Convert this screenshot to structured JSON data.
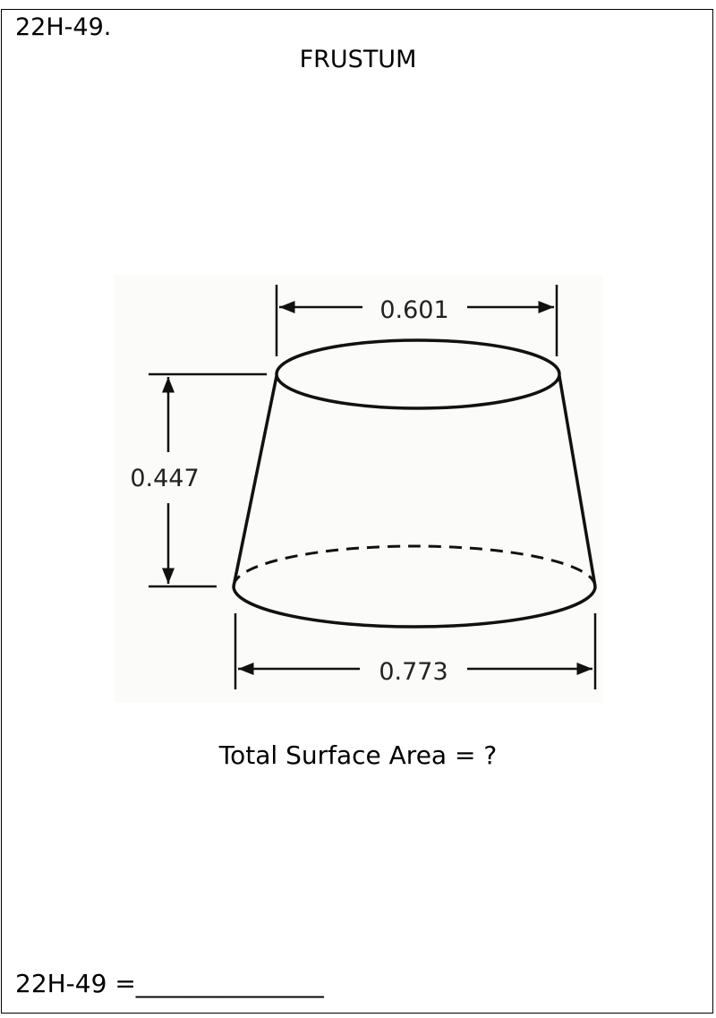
{
  "problem_id": "22H-49.",
  "shape_title": "FRUSTUM",
  "dimensions": {
    "top_diameter": "0.601",
    "height": "0.447",
    "bottom_diameter": "0.773"
  },
  "question": "Total Surface Area = ?",
  "answer_label": "22H-49 =",
  "answer_blank": "_______________"
}
